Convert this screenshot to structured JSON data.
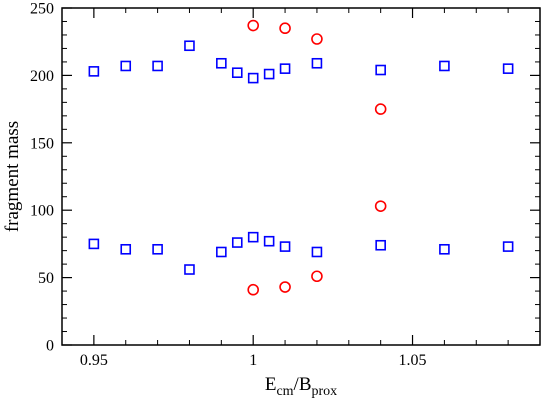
{
  "chart_data": {
    "type": "scatter",
    "xlabel": {
      "main": "E",
      "sub1": "cm",
      "sep": "/B",
      "sub2": "prox"
    },
    "ylabel": "fragment mass",
    "xlim": [
      0.94,
      1.09
    ],
    "ylim": [
      0,
      250
    ],
    "x_ticks": [
      0.95,
      1,
      1.05
    ],
    "x_tick_labels": [
      "0.95",
      "1",
      "1.05"
    ],
    "x_minor_step": 0.01,
    "y_ticks": [
      0,
      50,
      100,
      150,
      200,
      250
    ],
    "y_tick_labels": [
      "0",
      "50",
      "100",
      "150",
      "200",
      "250"
    ],
    "y_minor_step": 10,
    "grid": false,
    "series": [
      {
        "marker": "square",
        "color": "#0000ff",
        "points": [
          [
            0.95,
            203
          ],
          [
            0.96,
            207
          ],
          [
            0.97,
            207
          ],
          [
            0.98,
            222
          ],
          [
            0.99,
            209
          ],
          [
            0.995,
            202
          ],
          [
            1.0,
            198
          ],
          [
            1.005,
            201
          ],
          [
            1.01,
            205
          ],
          [
            1.02,
            209
          ],
          [
            1.04,
            204
          ],
          [
            1.06,
            207
          ],
          [
            1.08,
            205
          ],
          [
            0.95,
            75
          ],
          [
            0.96,
            71
          ],
          [
            0.97,
            71
          ],
          [
            0.98,
            56
          ],
          [
            0.99,
            69
          ],
          [
            0.995,
            76
          ],
          [
            1.0,
            80
          ],
          [
            1.005,
            77
          ],
          [
            1.01,
            73
          ],
          [
            1.02,
            69
          ],
          [
            1.04,
            74
          ],
          [
            1.06,
            71
          ],
          [
            1.08,
            73
          ]
        ]
      },
      {
        "marker": "circle",
        "color": "#ff0000",
        "points": [
          [
            1.0,
            237
          ],
          [
            1.01,
            235
          ],
          [
            1.02,
            227
          ],
          [
            1.04,
            175
          ],
          [
            1.04,
            103
          ],
          [
            1.02,
            51
          ],
          [
            1.01,
            43
          ],
          [
            1.0,
            41
          ]
        ]
      }
    ]
  }
}
